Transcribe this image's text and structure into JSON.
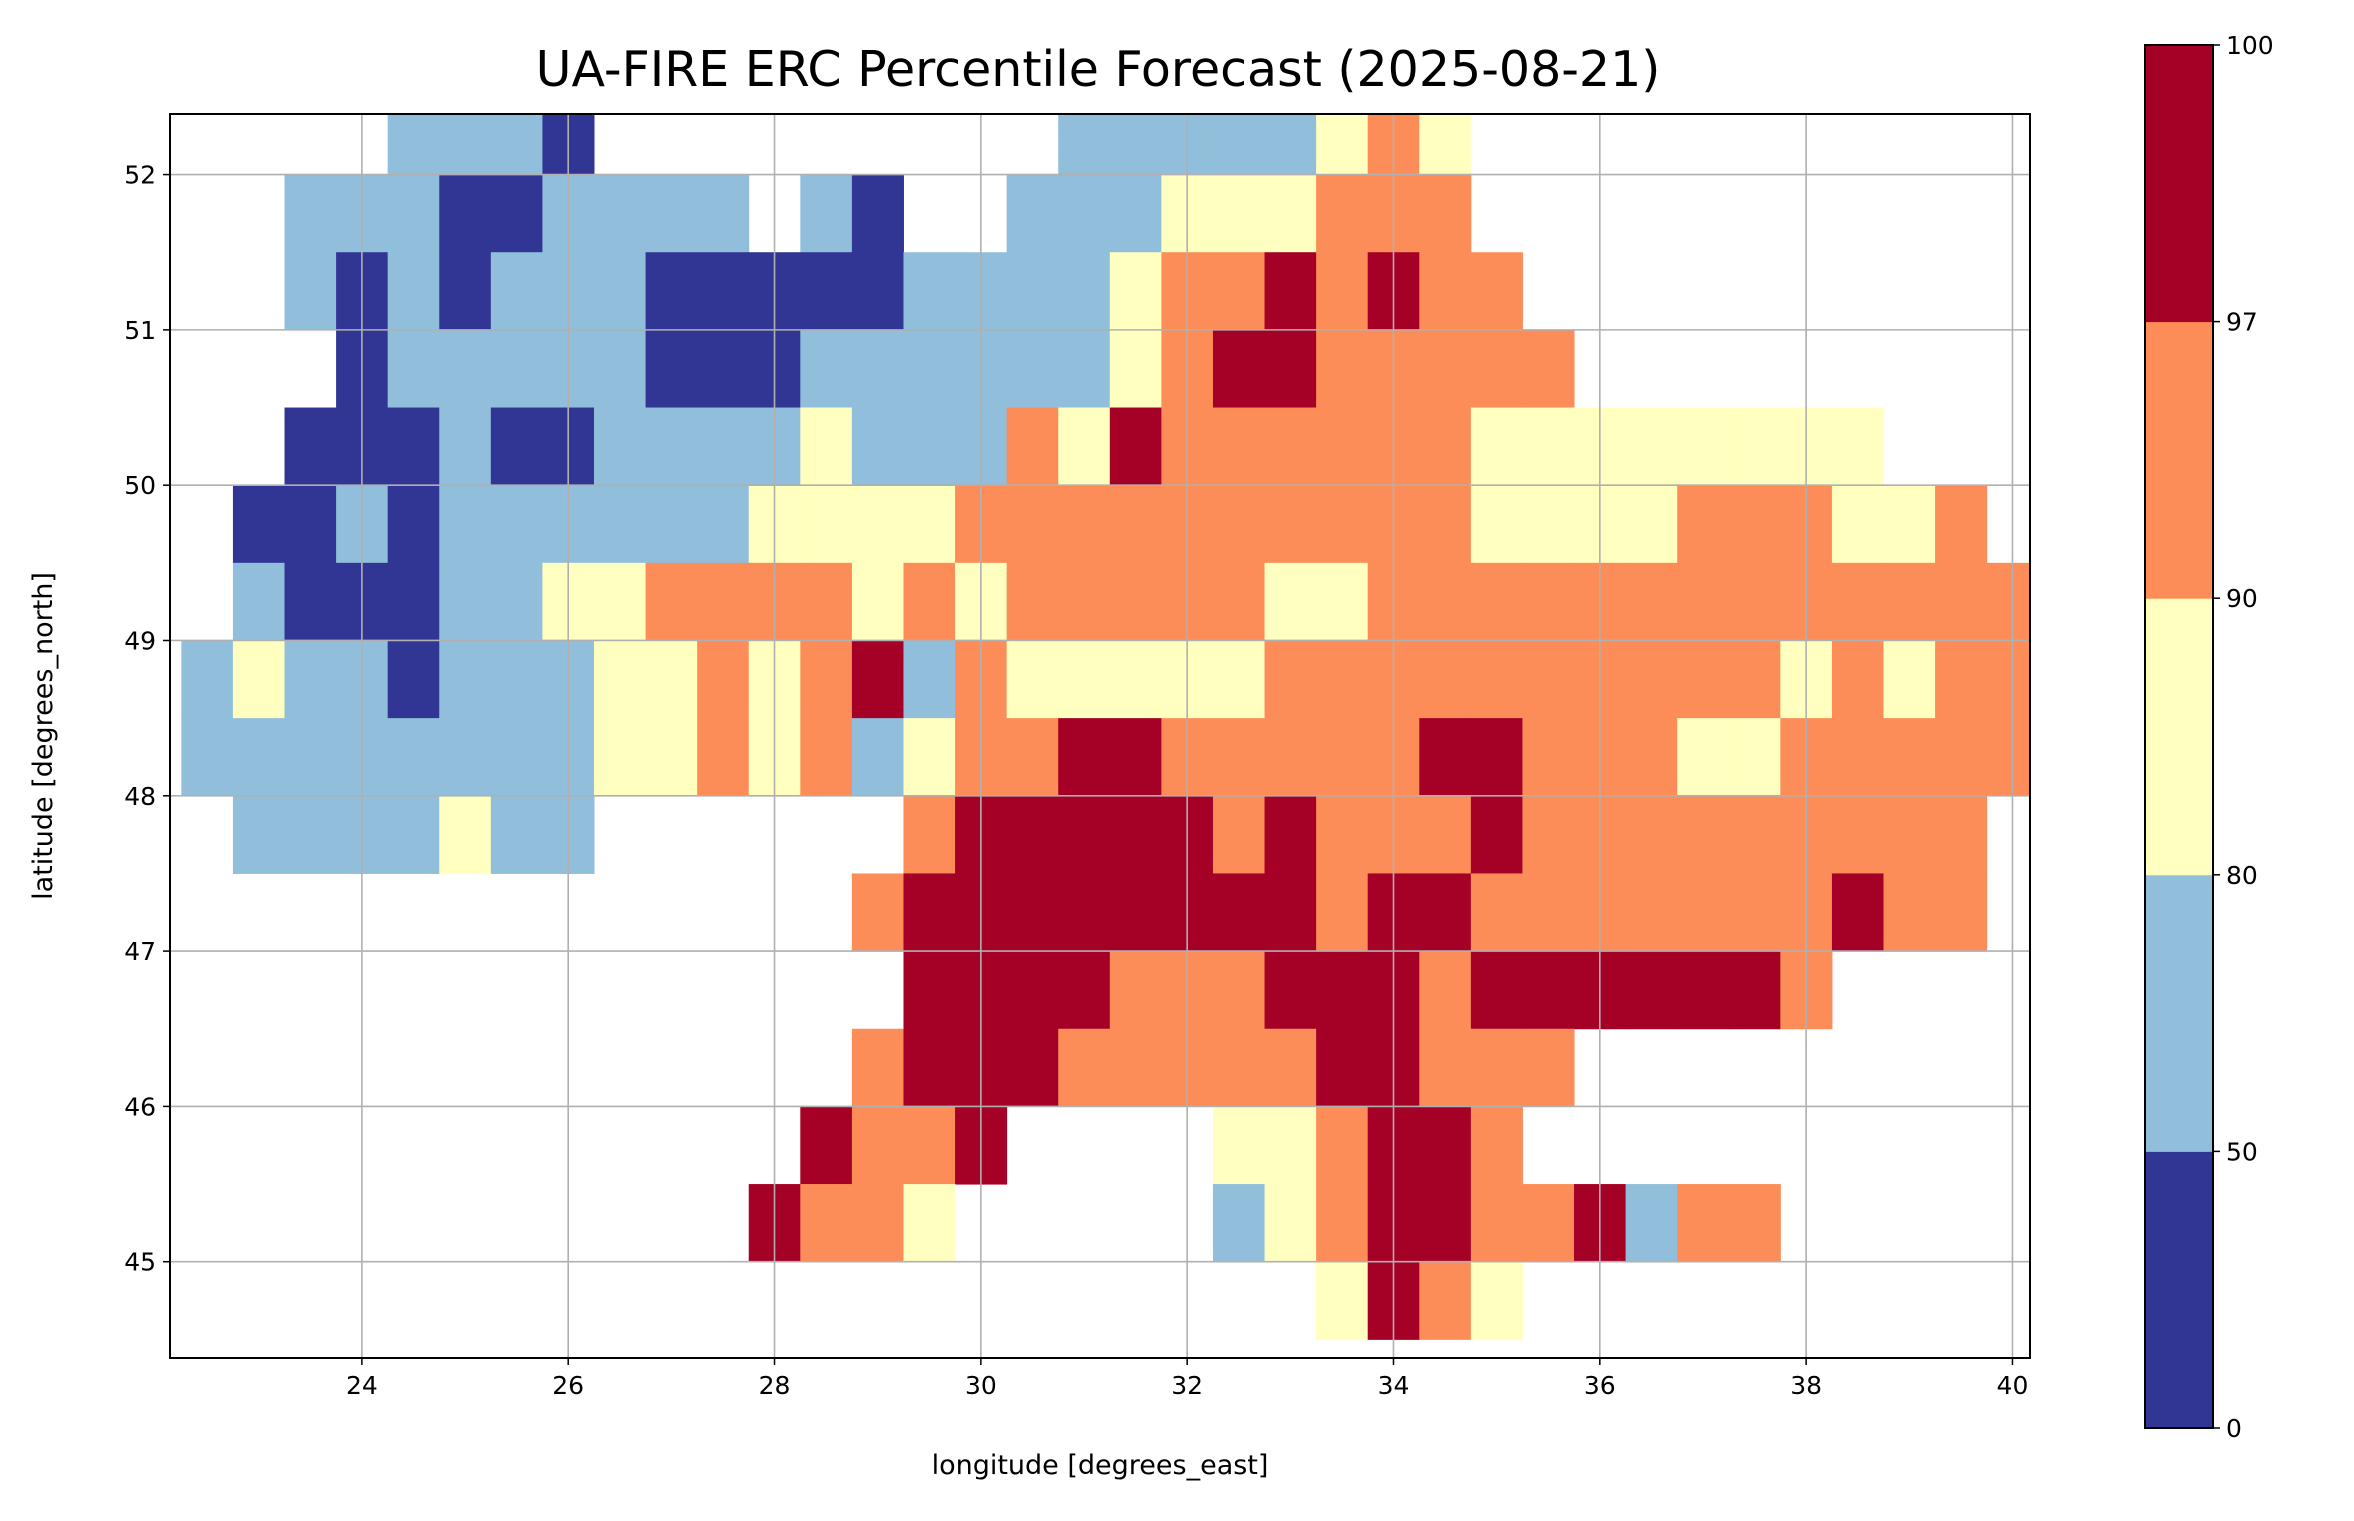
{
  "chart_data": {
    "type": "heatmap",
    "title": "UA-FIRE ERC Percentile Forecast (2025-08-21)",
    "xlabel": "longitude [degrees_east]",
    "ylabel": "latitude [degrees_north]",
    "xlim": [
      22.14,
      40.17
    ],
    "ylim": [
      44.38,
      52.39
    ],
    "xticks": [
      24,
      26,
      28,
      30,
      32,
      34,
      36,
      38,
      40
    ],
    "yticks": [
      45,
      46,
      47,
      48,
      49,
      50,
      51,
      52
    ],
    "grid": true,
    "colorbar": {
      "boundaries": [
        0,
        50,
        80,
        90,
        97,
        100
      ],
      "tick_labels": [
        "0",
        "50",
        "80",
        "90",
        "97",
        "100"
      ],
      "colors": [
        "#313695",
        "#91bfdb",
        "#ffffbf",
        "#fc8d59",
        "#a50026"
      ]
    },
    "grid_cells": {
      "lon_start": 22.25,
      "lat_start": 52.5,
      "cell_deg": 0.5,
      "legend": {
        ".": "no data",
        "D": "0-50",
        "B": "50-80",
        "Y": "80-90",
        "O": "90-97",
        "R": "97-100"
      },
      "class_index": {
        "D": 0,
        "B": 1,
        "Y": 2,
        "O": 3,
        "R": 4
      },
      "rows": [
        "....BBBD.........BBBBBYOY...........",
        "..BBBDDBBBB.BD..BBBYYYOOO...........",
        "..BDBDBBBDDDDDBBBBYOOROROO..........",
        "...DBBBBBDDDBBBBBBYORROOOOO.........",
        "..DDDBDDBBBBYBBBOYROOOOOOYYYYYYYY...",
        ".DDBDBBBBBBYYYYOOOOOOOOOOYYYYOOOYYO.",
        ".BDDDBBYYOOOOYOYOOOOOYYOOOOOOOOOOOOO",
        "BYBBDBBBYYOYORBOYYYYYOOOOOOOOOOYOYOO",
        "BBBBBBBBYYOYOBYOORROOOOORROOOYYOOOOO",
        ".BBBBYBB......ORRRRROROOOROOOOOOOOO.",
        ".............ORRRRRRRRORROOOOOOOROO.",
        "..............RRRROOORRRORRRRRRO....",
        ".............ORRROOOOORROOO.........",
        "............ROOR....YYORRO..........",
        "...........ROOY.....BYORROORBOO.....",
        "......................YROY.........."
      ]
    }
  }
}
